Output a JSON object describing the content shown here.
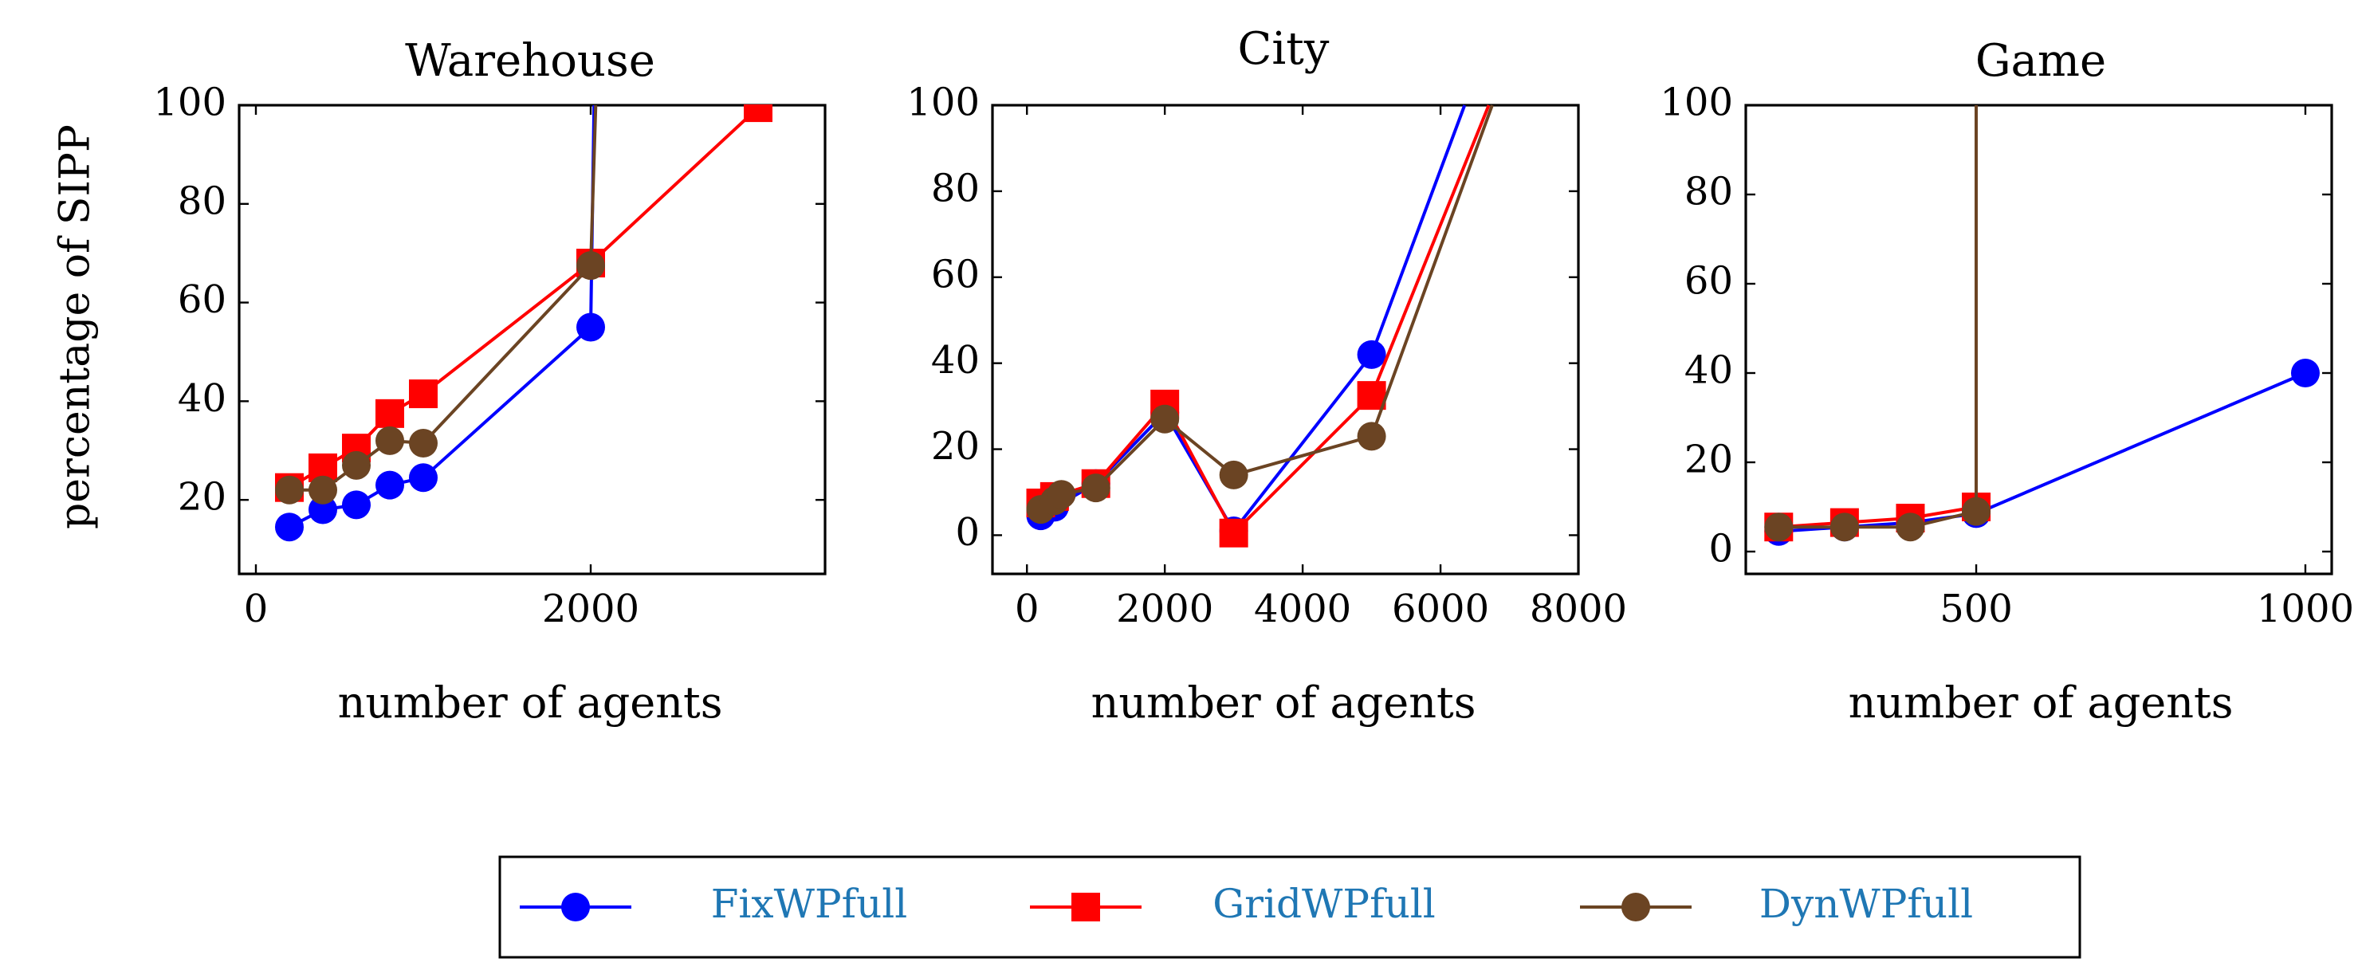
{
  "chart_data": [
    {
      "type": "line",
      "title": "Warehouse",
      "xlabel": "number of agents",
      "ylabel": "percentage of SIPP",
      "xlim": [
        -100,
        3400
      ],
      "ylim": [
        5,
        100
      ],
      "xticks": [
        0,
        2000
      ],
      "yticks": [
        20,
        40,
        60,
        80,
        100
      ],
      "series": [
        {
          "name": "FixWPfull",
          "x": [
            200,
            400,
            600,
            800,
            1000,
            2000,
            2020
          ],
          "y": [
            14.5,
            18,
            19,
            23,
            24.5,
            55,
            100
          ]
        },
        {
          "name": "GridWPfull",
          "x": [
            200,
            400,
            600,
            800,
            1000,
            2000,
            3000
          ],
          "y": [
            22.5,
            26.5,
            30.5,
            37.5,
            41.5,
            68,
            99.5
          ]
        },
        {
          "name": "DynWPfull",
          "x": [
            200,
            400,
            600,
            800,
            1000,
            2000,
            2030
          ],
          "y": [
            22,
            22,
            27,
            32,
            31.5,
            67.5,
            100
          ]
        }
      ]
    },
    {
      "type": "line",
      "title": "City",
      "xlabel": "number of agents",
      "ylabel": "",
      "xlim": [
        -500,
        8000
      ],
      "ylim": [
        -9,
        100
      ],
      "xticks": [
        0,
        2000,
        4000,
        6000,
        8000
      ],
      "yticks": [
        0,
        20,
        40,
        60,
        80,
        100
      ],
      "series": [
        {
          "name": "FixWPfull",
          "x": [
            200,
            400,
            1000,
            2000,
            3000,
            5000,
            6350
          ],
          "y": [
            4.5,
            6.5,
            12,
            28.5,
            1,
            42,
            100
          ]
        },
        {
          "name": "GridWPfull",
          "x": [
            200,
            400,
            1000,
            2000,
            3000,
            5000,
            6700
          ],
          "y": [
            7.5,
            9,
            12,
            30.5,
            0.5,
            32.5,
            100
          ]
        },
        {
          "name": "DynWPfull",
          "x": [
            200,
            400,
            500,
            1000,
            2000,
            3000,
            5000,
            6750
          ],
          "y": [
            6,
            8,
            9.5,
            11,
            27,
            14,
            23,
            100
          ]
        }
      ]
    },
    {
      "type": "line",
      "title": "Game",
      "xlabel": "number of agents",
      "ylabel": "",
      "xlim": [
        150,
        1040
      ],
      "ylim": [
        -5,
        100
      ],
      "xticks": [
        500,
        1000
      ],
      "yticks": [
        0,
        20,
        40,
        60,
        80,
        100
      ],
      "series": [
        {
          "name": "FixWPfull",
          "x": [
            200,
            300,
            400,
            500,
            1000
          ],
          "y": [
            4.5,
            5.5,
            6.5,
            8.5,
            40
          ]
        },
        {
          "name": "GridWPfull",
          "x": [
            200,
            300,
            400,
            500
          ],
          "y": [
            5.5,
            6.5,
            7.5,
            10
          ]
        },
        {
          "name": "DynWPfull",
          "x": [
            200,
            300,
            400,
            500,
            500
          ],
          "y": [
            5.5,
            5.5,
            5.5,
            9,
            100
          ]
        }
      ]
    }
  ],
  "legend": {
    "position": "bottom-center",
    "entries": [
      "FixWPfull",
      "GridWPfull",
      "DynWPfull"
    ]
  },
  "colors": {
    "FixWPfull": "#0000ff",
    "GridWPfull": "#ff0000",
    "DynWPfull": "#6b4423"
  },
  "markers": {
    "FixWPfull": "circle",
    "GridWPfull": "square",
    "DynWPfull": "circle"
  }
}
